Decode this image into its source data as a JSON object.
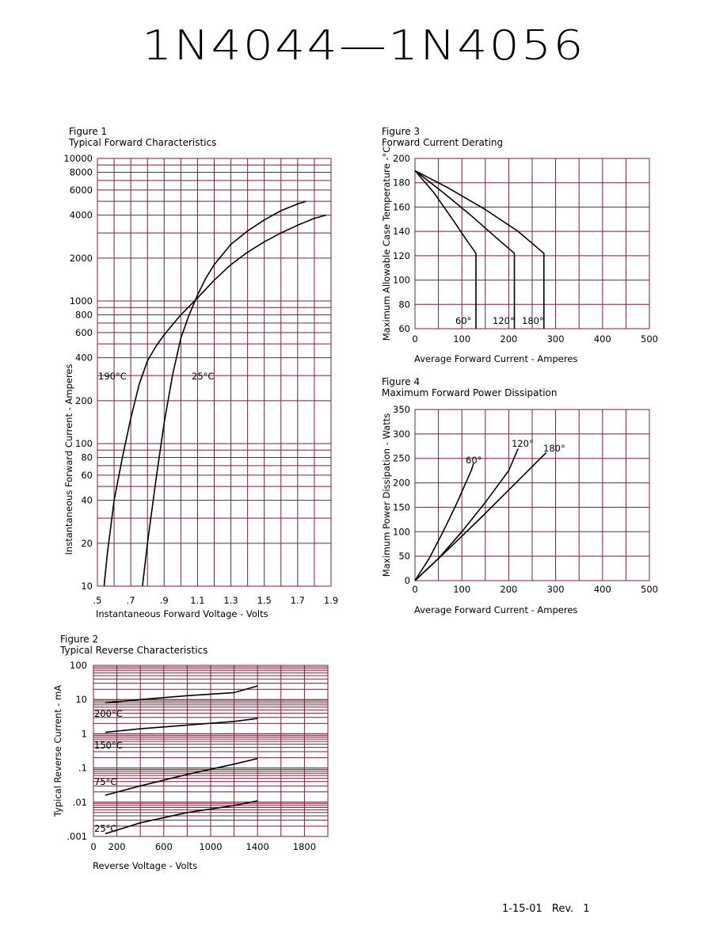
{
  "page": {
    "title": "1N4044—1N4056",
    "footer": "1-15-01   Rev. 1"
  },
  "colors": {
    "grid": "#7a1f3a",
    "curve": "#000000"
  },
  "chart_data": [
    {
      "id": "fig1",
      "figure_label": "Figure 1",
      "title": "Typical Forward Characteristics",
      "type": "line",
      "xlabel": "Instantaneous Forward Voltage - Volts",
      "ylabel": "Instantaneous Forward Current - Amperes",
      "xlim": [
        0.5,
        1.9
      ],
      "ylim": [
        10,
        10000
      ],
      "yscale": "log",
      "x_ticks": [
        ".5",
        ".7",
        ".9",
        "1.1",
        "1.3",
        "1.5",
        "1.7",
        "1.9"
      ],
      "y_tick_labels": [
        "10",
        "20",
        "40",
        "60",
        "80",
        "100",
        "200",
        "400",
        "600",
        "800",
        "1000",
        "2000",
        "4000",
        "6000",
        "8000",
        "10000"
      ],
      "series": [
        {
          "name": "190°C",
          "x": [
            0.54,
            0.56,
            0.6,
            0.65,
            0.7,
            0.75,
            0.8,
            0.85,
            0.9,
            1.0,
            1.1,
            1.2,
            1.3,
            1.4,
            1.5,
            1.6,
            1.7,
            1.8,
            1.87
          ],
          "y": [
            10,
            17,
            40,
            80,
            150,
            260,
            380,
            480,
            580,
            800,
            1050,
            1400,
            1800,
            2200,
            2600,
            3000,
            3400,
            3800,
            4000
          ]
        },
        {
          "name": "25°C",
          "x": [
            0.77,
            0.8,
            0.85,
            0.9,
            0.95,
            1.0,
            1.05,
            1.1,
            1.15,
            1.2,
            1.3,
            1.4,
            1.5,
            1.6,
            1.7,
            1.75
          ],
          "y": [
            10,
            20,
            55,
            140,
            300,
            550,
            800,
            1100,
            1450,
            1800,
            2500,
            3100,
            3700,
            4300,
            4800,
            5000
          ]
        }
      ]
    },
    {
      "id": "fig2",
      "figure_label": "Figure 2",
      "title": "Typical Reverse Characteristics",
      "type": "line",
      "xlabel": "Reverse Voltage - Volts",
      "ylabel": "Typical Reverse Current - mA",
      "xlim": [
        0,
        2000
      ],
      "ylim": [
        0.001,
        100
      ],
      "yscale": "log",
      "x_ticks": [
        "0",
        "200",
        "600",
        "1000",
        "1400",
        "1800"
      ],
      "y_tick_labels": [
        ".001",
        ".01",
        ".1",
        "1",
        "10",
        "100"
      ],
      "series": [
        {
          "name": "200°C",
          "x": [
            100,
            400,
            800,
            1200,
            1400
          ],
          "y": [
            8,
            10,
            13,
            16,
            25
          ]
        },
        {
          "name": "150°C",
          "x": [
            100,
            400,
            800,
            1200,
            1400
          ],
          "y": [
            1.1,
            1.4,
            1.8,
            2.3,
            2.8
          ]
        },
        {
          "name": "75°C",
          "x": [
            100,
            400,
            800,
            1200,
            1400
          ],
          "y": [
            0.016,
            0.03,
            0.065,
            0.13,
            0.19
          ]
        },
        {
          "name": "25°C",
          "x": [
            100,
            400,
            800,
            1200,
            1400
          ],
          "y": [
            0.0012,
            0.0025,
            0.005,
            0.008,
            0.011
          ]
        }
      ]
    },
    {
      "id": "fig3",
      "figure_label": "Figure 3",
      "title": "Forward Current Derating",
      "type": "line",
      "xlabel": "Average Forward Current - Amperes",
      "ylabel": "Maximum Allowable Case Temperature -°C",
      "xlim": [
        0,
        500
      ],
      "ylim": [
        60,
        200
      ],
      "x_ticks": [
        "0",
        "100",
        "200",
        "300",
        "400",
        "500"
      ],
      "y_tick_labels": [
        "60",
        "80",
        "100",
        "120",
        "140",
        "160",
        "180",
        "200"
      ],
      "series": [
        {
          "name": "60°",
          "x": [
            0,
            40,
            80,
            110,
            130,
            130
          ],
          "y": [
            190,
            172,
            150,
            133,
            122,
            60
          ]
        },
        {
          "name": "120°",
          "x": [
            0,
            60,
            120,
            170,
            212,
            212
          ],
          "y": [
            190,
            172,
            153,
            136,
            122,
            60
          ]
        },
        {
          "name": "180°",
          "x": [
            0,
            70,
            150,
            220,
            275,
            275
          ],
          "y": [
            190,
            176,
            158,
            140,
            122,
            60
          ]
        }
      ]
    },
    {
      "id": "fig4",
      "figure_label": "Figure 4",
      "title": "Maximum Forward Power Dissipation",
      "type": "line",
      "xlabel": "Average Forward Current - Amperes",
      "ylabel": "Maximum Power Dissipation - Watts",
      "xlim": [
        0,
        500
      ],
      "ylim": [
        0,
        350
      ],
      "x_ticks": [
        "0",
        "100",
        "200",
        "300",
        "400",
        "500"
      ],
      "y_tick_labels": [
        "0",
        "50",
        "100",
        "150",
        "200",
        "250",
        "300",
        "350"
      ],
      "series": [
        {
          "name": "60°",
          "x": [
            0,
            30,
            60,
            90,
            120,
            125
          ],
          "y": [
            0,
            45,
            100,
            160,
            225,
            240
          ]
        },
        {
          "name": "120°",
          "x": [
            0,
            50,
            100,
            150,
            200,
            220
          ],
          "y": [
            0,
            45,
            100,
            160,
            225,
            270
          ]
        },
        {
          "name": "180°",
          "x": [
            0,
            70,
            140,
            210,
            280
          ],
          "y": [
            0,
            63,
            128,
            195,
            262
          ]
        }
      ]
    }
  ]
}
